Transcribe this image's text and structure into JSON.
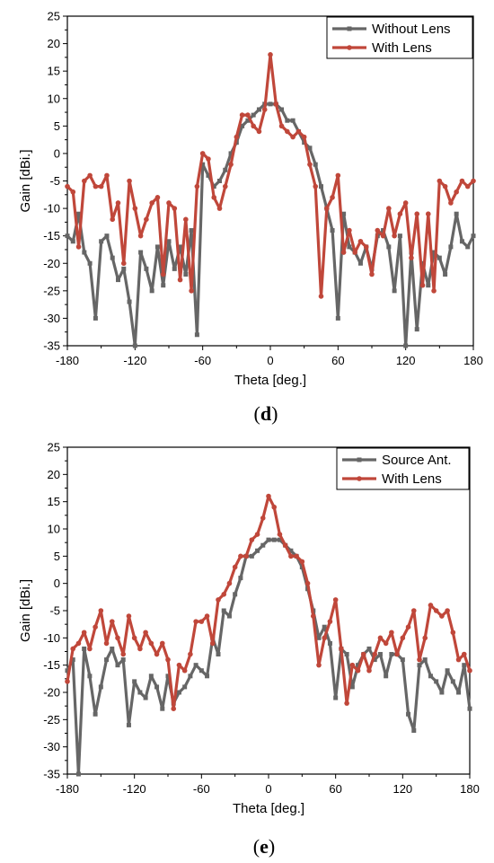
{
  "chart_data": [
    {
      "type": "line",
      "panel_label": "d",
      "xlabel": "Theta [deg.]",
      "ylabel": "Gain [dBi.]",
      "xlim": [
        -180,
        180
      ],
      "ylim": [
        -35,
        25
      ],
      "xticks": [
        -180,
        -120,
        -60,
        0,
        60,
        120,
        180
      ],
      "yticks": [
        25,
        20,
        15,
        10,
        5,
        0,
        -5,
        -10,
        -15,
        -20,
        -25,
        -30,
        -35
      ],
      "legend_position": "top-right",
      "series": [
        {
          "name": "Without Lens",
          "color": "#666666",
          "x": [
            -180,
            -175,
            -170,
            -165,
            -160,
            -155,
            -150,
            -145,
            -140,
            -135,
            -130,
            -125,
            -120,
            -115,
            -110,
            -105,
            -100,
            -95,
            -90,
            -85,
            -80,
            -75,
            -70,
            -65,
            -60,
            -55,
            -50,
            -45,
            -40,
            -35,
            -30,
            -25,
            -20,
            -15,
            -10,
            -5,
            0,
            5,
            10,
            15,
            20,
            25,
            30,
            35,
            40,
            45,
            50,
            55,
            60,
            65,
            70,
            75,
            80,
            85,
            90,
            95,
            100,
            105,
            110,
            115,
            120,
            125,
            130,
            135,
            140,
            145,
            150,
            155,
            160,
            165,
            170,
            175,
            180
          ],
          "y": [
            -15,
            -16,
            -11,
            -18,
            -20,
            -30,
            -16,
            -15,
            -19,
            -23,
            -21,
            -27,
            -35,
            -18,
            -21,
            -25,
            -17,
            -24,
            -16,
            -21,
            -17,
            -22,
            -14,
            -33,
            -2,
            -4,
            -6,
            -5,
            -3,
            0,
            2,
            5,
            6,
            7,
            8,
            9,
            9,
            9,
            8,
            6,
            6,
            4,
            2,
            1,
            -2,
            -6,
            -10,
            -14,
            -30,
            -11,
            -17,
            -18,
            -20,
            -17,
            -21,
            -15,
            -14,
            -17,
            -25,
            -15,
            -35,
            -18,
            -32,
            -20,
            -24,
            -18,
            -19,
            -22,
            -17,
            -11,
            -16,
            -17,
            -15
          ]
        },
        {
          "name": "With Lens",
          "color": "#c0473a",
          "x": [
            -180,
            -175,
            -170,
            -165,
            -160,
            -155,
            -150,
            -145,
            -140,
            -135,
            -130,
            -125,
            -120,
            -115,
            -110,
            -105,
            -100,
            -95,
            -90,
            -85,
            -80,
            -75,
            -70,
            -65,
            -60,
            -55,
            -50,
            -45,
            -40,
            -35,
            -30,
            -25,
            -20,
            -15,
            -10,
            -5,
            0,
            5,
            10,
            15,
            20,
            25,
            30,
            35,
            40,
            45,
            50,
            55,
            60,
            65,
            70,
            75,
            80,
            85,
            90,
            95,
            100,
            105,
            110,
            115,
            120,
            125,
            130,
            135,
            140,
            145,
            150,
            155,
            160,
            165,
            170,
            175,
            180
          ],
          "y": [
            -6,
            -7,
            -17,
            -5,
            -4,
            -6,
            -6,
            -4,
            -12,
            -9,
            -20,
            -5,
            -10,
            -15,
            -12,
            -9,
            -8,
            -22,
            -9,
            -10,
            -23,
            -12,
            -25,
            -6,
            0,
            -1,
            -8,
            -10,
            -6,
            -2,
            3,
            7,
            7,
            5,
            4,
            8,
            18,
            9,
            5,
            4,
            3,
            4,
            3,
            -2,
            -6,
            -26,
            -10,
            -8,
            -4,
            -18,
            -14,
            -18,
            -16,
            -17,
            -22,
            -14,
            -15,
            -10,
            -15,
            -11,
            -9,
            -19,
            -11,
            -24,
            -11,
            -25,
            -5,
            -6,
            -9,
            -7,
            -5,
            -6,
            -5
          ]
        }
      ]
    },
    {
      "type": "line",
      "panel_label": "e",
      "xlabel": "Theta [deg.]",
      "ylabel": "Gain [dBi.]",
      "xlim": [
        -180,
        180
      ],
      "ylim": [
        -35,
        25
      ],
      "xticks": [
        -180,
        -120,
        -60,
        0,
        60,
        120,
        180
      ],
      "yticks": [
        25,
        20,
        15,
        10,
        5,
        0,
        -5,
        -10,
        -15,
        -20,
        -25,
        -30,
        -35
      ],
      "legend_position": "top-right",
      "series": [
        {
          "name": "Source Ant.",
          "color": "#666666",
          "x": [
            -180,
            -175,
            -170,
            -165,
            -160,
            -155,
            -150,
            -145,
            -140,
            -135,
            -130,
            -125,
            -120,
            -115,
            -110,
            -105,
            -100,
            -95,
            -90,
            -85,
            -80,
            -75,
            -70,
            -65,
            -60,
            -55,
            -50,
            -45,
            -40,
            -35,
            -30,
            -25,
            -20,
            -15,
            -10,
            -5,
            0,
            5,
            10,
            15,
            20,
            25,
            30,
            35,
            40,
            45,
            50,
            55,
            60,
            65,
            70,
            75,
            80,
            85,
            90,
            95,
            100,
            105,
            110,
            115,
            120,
            125,
            130,
            135,
            140,
            145,
            150,
            155,
            160,
            165,
            170,
            175,
            180
          ],
          "y": [
            -16,
            -14,
            -35,
            -12,
            -17,
            -24,
            -19,
            -14,
            -12,
            -15,
            -14,
            -26,
            -18,
            -20,
            -21,
            -17,
            -19,
            -23,
            -17,
            -22,
            -20,
            -19,
            -17,
            -15,
            -16,
            -17,
            -10,
            -13,
            -5,
            -6,
            -2,
            1,
            5,
            5,
            6,
            7,
            8,
            8,
            8,
            7,
            6,
            5,
            3,
            -1,
            -5,
            -10,
            -8,
            -11,
            -21,
            -12,
            -13,
            -19,
            -15,
            -13,
            -12,
            -14,
            -13,
            -17,
            -13,
            -13,
            -14,
            -24,
            -27,
            -15,
            -14,
            -17,
            -18,
            -20,
            -16,
            -18,
            -20,
            -15,
            -23
          ]
        },
        {
          "name": "With Lens",
          "color": "#c0473a",
          "x": [
            -180,
            -175,
            -170,
            -165,
            -160,
            -155,
            -150,
            -145,
            -140,
            -135,
            -130,
            -125,
            -120,
            -115,
            -110,
            -105,
            -100,
            -95,
            -90,
            -85,
            -80,
            -75,
            -70,
            -65,
            -60,
            -55,
            -50,
            -45,
            -40,
            -35,
            -30,
            -25,
            -20,
            -15,
            -10,
            -5,
            0,
            5,
            10,
            15,
            20,
            25,
            30,
            35,
            40,
            45,
            50,
            55,
            60,
            65,
            70,
            75,
            80,
            85,
            90,
            95,
            100,
            105,
            110,
            115,
            120,
            125,
            130,
            135,
            140,
            145,
            150,
            155,
            160,
            165,
            170,
            175,
            180
          ],
          "y": [
            -18,
            -12,
            -11,
            -9,
            -12,
            -8,
            -5,
            -11,
            -7,
            -10,
            -13,
            -6,
            -10,
            -12,
            -9,
            -11,
            -13,
            -11,
            -14,
            -23,
            -15,
            -16,
            -13,
            -7,
            -7,
            -6,
            -11,
            -3,
            -2,
            0,
            3,
            5,
            5,
            8,
            9,
            12,
            16,
            14,
            9,
            7,
            5,
            5,
            4,
            0,
            -6,
            -15,
            -10,
            -7,
            -3,
            -12,
            -22,
            -15,
            -16,
            -13,
            -16,
            -13,
            -10,
            -11,
            -9,
            -13,
            -10,
            -8,
            -5,
            -14,
            -10,
            -4,
            -5,
            -6,
            -5,
            -9,
            -14,
            -13,
            -16
          ]
        }
      ]
    }
  ]
}
